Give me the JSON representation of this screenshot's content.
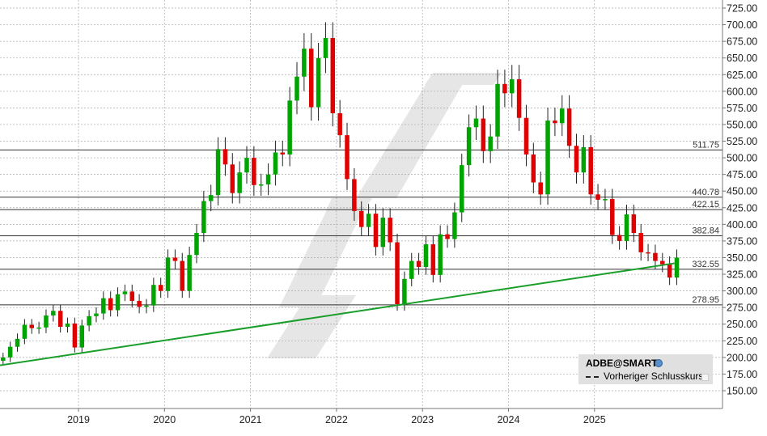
{
  "chart_data": {
    "type": "candlestick",
    "symbol": "ADBE@SMART",
    "legend": {
      "title": "ADBE@SMART",
      "entries": [
        "Vorheriger Schlusskurs"
      ],
      "placement": "bottom-right"
    },
    "ylim": [
      130,
      735
    ],
    "y_ticks": [
      "725.00",
      "700.00",
      "675.00",
      "650.00",
      "625.00",
      "600.00",
      "575.00",
      "550.00",
      "525.00",
      "500.00",
      "475.00",
      "450.00",
      "425.00",
      "400.00",
      "375.00",
      "350.00",
      "325.00",
      "300.00",
      "275.00",
      "250.00",
      "225.00",
      "200.00",
      "175.00",
      "150.00"
    ],
    "x_ticks": [
      "2019",
      "2020",
      "2021",
      "2022",
      "2023",
      "2024",
      "2025"
    ],
    "grid": true,
    "colors": {
      "up": "#00a400",
      "down": "#e00000",
      "trendline": "#1a9e2a",
      "level": "#333333",
      "watermark": "#e6e6e6"
    },
    "horizontal_levels": [
      "511.75",
      "440.78",
      "422.15",
      "382.84",
      "332.55",
      "278.95"
    ],
    "trendline": {
      "start": [
        "2018-02",
        187
      ],
      "end": [
        "2025-12",
        342
      ]
    },
    "dates": [
      "2018-02",
      "2018-03",
      "2018-04",
      "2018-05",
      "2018-06",
      "2018-07",
      "2018-08",
      "2018-09",
      "2018-10",
      "2018-11",
      "2018-12",
      "2019-01",
      "2019-02",
      "2019-03",
      "2019-04",
      "2019-05",
      "2019-06",
      "2019-07",
      "2019-08",
      "2019-09",
      "2019-10",
      "2019-11",
      "2019-12",
      "2020-01",
      "2020-02",
      "2020-03",
      "2020-04",
      "2020-05",
      "2020-06",
      "2020-07",
      "2020-08",
      "2020-09",
      "2020-10",
      "2020-11",
      "2020-12",
      "2021-01",
      "2021-02",
      "2021-03",
      "2021-04",
      "2021-05",
      "2021-06",
      "2021-07",
      "2021-08",
      "2021-09",
      "2021-10",
      "2021-11",
      "2021-12",
      "2022-01",
      "2022-02",
      "2022-03",
      "2022-04",
      "2022-05",
      "2022-06",
      "2022-07",
      "2022-08",
      "2022-09",
      "2022-10",
      "2022-11",
      "2022-12",
      "2023-01",
      "2023-02",
      "2023-03",
      "2023-04",
      "2023-05",
      "2023-06",
      "2023-07",
      "2023-08",
      "2023-09",
      "2023-10",
      "2023-11",
      "2023-12",
      "2024-01",
      "2024-02",
      "2024-03",
      "2024-04",
      "2024-05",
      "2024-06",
      "2024-07",
      "2024-08",
      "2024-09",
      "2024-10",
      "2024-11",
      "2024-12",
      "2025-01",
      "2025-02",
      "2025-03",
      "2025-04",
      "2025-05",
      "2025-06",
      "2025-07",
      "2025-08",
      "2025-09",
      "2025-10",
      "2025-11",
      "2025-12"
    ],
    "close": [
      200,
      216,
      228,
      249,
      244,
      245,
      263,
      270,
      246,
      251,
      215,
      248,
      262,
      266,
      289,
      271,
      295,
      299,
      285,
      276,
      278,
      309,
      300,
      350,
      345,
      300,
      354,
      387,
      435,
      444,
      513,
      490,
      447,
      478,
      500,
      459,
      460,
      475,
      508,
      505,
      586,
      622,
      664,
      576,
      650,
      680,
      567,
      534,
      468,
      420,
      396,
      416,
      366,
      410,
      373,
      280,
      318,
      345,
      336,
      370,
      324,
      385,
      378,
      418,
      489,
      546,
      559,
      510,
      532,
      611,
      597,
      618,
      560,
      505,
      463,
      445,
      556,
      552,
      574,
      518,
      478,
      516,
      445,
      437,
      438,
      384,
      375,
      415,
      387,
      358,
      357,
      345,
      340,
      320,
      350
    ]
  }
}
